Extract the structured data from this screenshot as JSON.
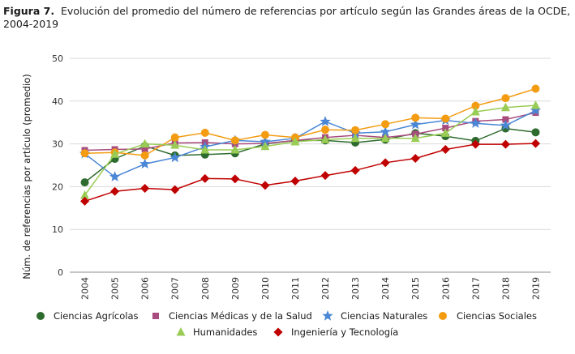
{
  "caption": {
    "label": "Figura 7.",
    "text": "Evolución del promedio del número de referencias por artículo según las Grandes áreas de la OCDE, 2004-2019"
  },
  "chart_data": {
    "type": "line",
    "title": "",
    "xlabel": "",
    "ylabel": "Núm. de referencias por artículo (promedio)",
    "ylim": [
      0,
      50
    ],
    "yticks": [
      0,
      10,
      20,
      30,
      40,
      50
    ],
    "grid": "horizontal",
    "legend_position": "bottom",
    "categories": [
      "2004",
      "2005",
      "2006",
      "2007",
      "2008",
      "2009",
      "2010",
      "2011",
      "2012",
      "2013",
      "2014",
      "2015",
      "2016",
      "2017",
      "2018",
      "2019"
    ],
    "series": [
      {
        "name": "Ciencias Agrícolas",
        "color": "#2e6b2e",
        "marker": "circle",
        "values": [
          21.0,
          26.5,
          29.5,
          27.3,
          27.5,
          27.8,
          30.0,
          30.8,
          30.8,
          30.3,
          31.0,
          32.5,
          31.8,
          30.7,
          33.6,
          32.7
        ]
      },
      {
        "name": "Ciencias Médicas y de la Salud",
        "color": "#a84b7e",
        "marker": "square",
        "values": [
          28.5,
          28.7,
          28.8,
          30.2,
          30.3,
          30.0,
          30.1,
          30.8,
          31.5,
          32.0,
          31.5,
          32.3,
          33.7,
          35.3,
          35.7,
          37.3
        ]
      },
      {
        "name": "Ciencias Naturales",
        "color": "#4a86d6",
        "marker": "star",
        "values": [
          27.7,
          22.3,
          25.3,
          26.8,
          29.3,
          30.8,
          30.5,
          31.3,
          35.2,
          32.5,
          32.8,
          34.5,
          35.5,
          34.8,
          34.3,
          37.8
        ]
      },
      {
        "name": "Ciencias Sociales",
        "color": "#f39c12",
        "marker": "circle",
        "values": [
          27.8,
          28.0,
          27.3,
          31.5,
          32.6,
          30.8,
          32.1,
          31.5,
          33.3,
          33.2,
          34.6,
          36.1,
          35.9,
          38.9,
          40.7,
          42.9
        ]
      },
      {
        "name": "Humanidades",
        "color": "#99cc55",
        "marker": "triangle",
        "values": [
          18.0,
          27.6,
          30.0,
          29.7,
          28.6,
          28.6,
          29.4,
          30.5,
          31.0,
          31.3,
          31.3,
          31.3,
          32.5,
          37.5,
          38.5,
          39.0
        ]
      },
      {
        "name": "Ingeniería y Tecnología",
        "color": "#c00000",
        "marker": "diamond",
        "values": [
          16.6,
          18.9,
          19.6,
          19.3,
          21.9,
          21.8,
          20.3,
          21.3,
          22.6,
          23.8,
          25.6,
          26.6,
          28.7,
          29.9,
          29.9,
          30.1
        ]
      }
    ]
  }
}
